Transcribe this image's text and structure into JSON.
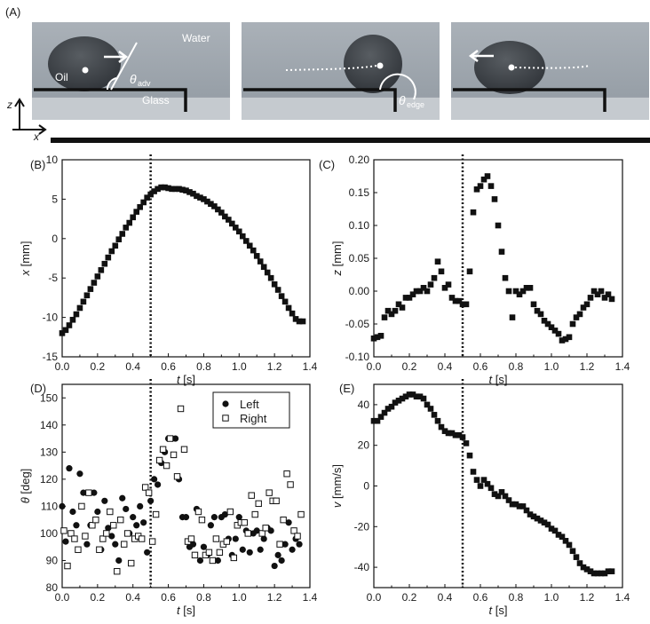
{
  "figure_labels": {
    "a": "(A)",
    "b": "(B)",
    "c": "(C)",
    "d": "(D)",
    "e": "(E)"
  },
  "photos": {
    "water": "Water",
    "oil": "Oil",
    "glass": "Glass",
    "theta": "θ",
    "adv_sub": "adv",
    "edge_sub": "edge",
    "axis_z": "z",
    "axis_x": "x",
    "colors": {
      "background": "#9ea6ae",
      "droplet": "#3b3f44",
      "substrate": "#c4c9cd",
      "edge": "#111111"
    }
  },
  "chart_data": [
    {
      "id": "B",
      "type": "scatter",
      "xlabel": "t [s]",
      "ylabel": "x [mm]",
      "xlim": [
        0.0,
        1.4
      ],
      "ylim": [
        -15,
        10
      ],
      "xticks": [
        "0.0",
        "0.2",
        "0.4",
        "0.6",
        "0.8",
        "1.0",
        "1.2",
        "1.4"
      ],
      "yticks": [
        "-15",
        "-10",
        "-5",
        "0",
        "5",
        "10"
      ],
      "marker": "square",
      "vline": 0.5,
      "series": [
        {
          "x": [
            0.0,
            0.02,
            0.04,
            0.06,
            0.08,
            0.1,
            0.12,
            0.14,
            0.16,
            0.18,
            0.2,
            0.22,
            0.24,
            0.26,
            0.28,
            0.3,
            0.32,
            0.34,
            0.36,
            0.38,
            0.4,
            0.42,
            0.44,
            0.46,
            0.48,
            0.5,
            0.52,
            0.54,
            0.56,
            0.58,
            0.6,
            0.62,
            0.64,
            0.66,
            0.68,
            0.7,
            0.72,
            0.74,
            0.76,
            0.78,
            0.8,
            0.82,
            0.84,
            0.86,
            0.88,
            0.9,
            0.92,
            0.94,
            0.96,
            0.98,
            1.0,
            1.02,
            1.04,
            1.06,
            1.08,
            1.1,
            1.12,
            1.14,
            1.16,
            1.18,
            1.2,
            1.22,
            1.24,
            1.26,
            1.28,
            1.3,
            1.32,
            1.34,
            1.36
          ],
          "y": [
            -12.0,
            -11.6,
            -11.0,
            -10.3,
            -9.6,
            -8.8,
            -8.0,
            -7.2,
            -6.4,
            -5.6,
            -4.8,
            -4.0,
            -3.2,
            -2.4,
            -1.6,
            -0.9,
            -0.1,
            0.6,
            1.4,
            2.0,
            2.7,
            3.4,
            4.0,
            4.6,
            5.2,
            5.6,
            6.0,
            6.3,
            6.5,
            6.5,
            6.4,
            6.3,
            6.3,
            6.3,
            6.2,
            6.1,
            5.9,
            5.7,
            5.4,
            5.2,
            5.0,
            4.7,
            4.4,
            4.1,
            3.7,
            3.3,
            2.8,
            2.4,
            1.9,
            1.4,
            0.9,
            0.3,
            -0.3,
            -0.9,
            -1.5,
            -2.2,
            -2.9,
            -3.6,
            -4.3,
            -5.0,
            -5.8,
            -6.5,
            -7.3,
            -8.0,
            -8.8,
            -9.5,
            -10.2,
            -10.5,
            -10.5
          ]
        }
      ]
    },
    {
      "id": "C",
      "type": "scatter",
      "xlabel": "t [s]",
      "ylabel": "z [mm]",
      "xlim": [
        0.0,
        1.4
      ],
      "ylim": [
        -0.1,
        0.2
      ],
      "xticks": [
        "0.0",
        "0.2",
        "0.4",
        "0.6",
        "0.8",
        "1.0",
        "1.2",
        "1.4"
      ],
      "yticks": [
        "-0.10",
        "-0.05",
        "0.00",
        "0.05",
        "0.10",
        "0.15",
        "0.20"
      ],
      "marker": "square",
      "vline": 0.5,
      "series": [
        {
          "x": [
            0.0,
            0.02,
            0.04,
            0.06,
            0.08,
            0.1,
            0.12,
            0.14,
            0.16,
            0.18,
            0.2,
            0.22,
            0.24,
            0.26,
            0.28,
            0.3,
            0.32,
            0.34,
            0.36,
            0.38,
            0.4,
            0.42,
            0.44,
            0.46,
            0.48,
            0.5,
            0.52,
            0.54,
            0.56,
            0.58,
            0.6,
            0.62,
            0.64,
            0.66,
            0.68,
            0.7,
            0.72,
            0.74,
            0.76,
            0.78,
            0.8,
            0.82,
            0.84,
            0.86,
            0.88,
            0.9,
            0.92,
            0.94,
            0.96,
            0.98,
            1.0,
            1.02,
            1.04,
            1.06,
            1.08,
            1.1,
            1.12,
            1.14,
            1.16,
            1.18,
            1.2,
            1.22,
            1.24,
            1.26,
            1.28,
            1.3,
            1.32,
            1.34
          ],
          "y": [
            -0.072,
            -0.07,
            -0.068,
            -0.04,
            -0.03,
            -0.035,
            -0.03,
            -0.02,
            -0.025,
            -0.01,
            -0.01,
            -0.005,
            0.0,
            0.0,
            0.005,
            0.0,
            0.01,
            0.02,
            0.045,
            0.03,
            0.005,
            0.01,
            -0.01,
            -0.015,
            -0.015,
            -0.02,
            -0.02,
            0.03,
            0.12,
            0.155,
            0.16,
            0.17,
            0.175,
            0.16,
            0.14,
            0.1,
            0.06,
            0.02,
            0.0,
            -0.04,
            0.0,
            -0.005,
            0.0,
            0.005,
            0.005,
            -0.02,
            -0.03,
            -0.035,
            -0.045,
            -0.05,
            -0.055,
            -0.06,
            -0.065,
            -0.075,
            -0.073,
            -0.07,
            -0.05,
            -0.04,
            -0.035,
            -0.025,
            -0.02,
            -0.01,
            0.0,
            -0.005,
            0.0,
            -0.01,
            -0.005,
            -0.012
          ]
        }
      ]
    },
    {
      "id": "D",
      "type": "scatter",
      "xlabel": "t [s]",
      "ylabel": "θ [deg]",
      "xlim": [
        0.0,
        1.4
      ],
      "ylim": [
        80,
        155
      ],
      "xticks": [
        "0.0",
        "0.2",
        "0.4",
        "0.6",
        "0.8",
        "1.0",
        "1.2",
        "1.4"
      ],
      "yticks": [
        "80",
        "90",
        "100",
        "110",
        "120",
        "130",
        "140",
        "150"
      ],
      "vline": 0.5,
      "legend": "top-right",
      "series": [
        {
          "name": "Left",
          "marker": "circle-filled",
          "x": [
            0.0,
            0.02,
            0.04,
            0.06,
            0.08,
            0.1,
            0.12,
            0.14,
            0.16,
            0.18,
            0.2,
            0.22,
            0.24,
            0.26,
            0.28,
            0.3,
            0.32,
            0.34,
            0.36,
            0.38,
            0.4,
            0.42,
            0.44,
            0.46,
            0.48,
            0.5,
            0.52,
            0.54,
            0.56,
            0.58,
            0.6,
            0.62,
            0.64,
            0.66,
            0.68,
            0.7,
            0.72,
            0.74,
            0.76,
            0.78,
            0.8,
            0.82,
            0.84,
            0.86,
            0.88,
            0.9,
            0.92,
            0.94,
            0.96,
            0.98,
            1.0,
            1.02,
            1.04,
            1.06,
            1.08,
            1.1,
            1.12,
            1.14,
            1.16,
            1.18,
            1.2,
            1.22,
            1.24,
            1.26,
            1.28,
            1.3,
            1.32,
            1.34
          ],
          "y": [
            110,
            97,
            124,
            108,
            103,
            122,
            115,
            96,
            103,
            115,
            108,
            94,
            112,
            102,
            99,
            96,
            90,
            113,
            109,
            100,
            106,
            103,
            110,
            104,
            93,
            112,
            120,
            118,
            126,
            130,
            135,
            135,
            135,
            120,
            106,
            106,
            95,
            96,
            109,
            90,
            95,
            92,
            103,
            106,
            90,
            106,
            107,
            98,
            92,
            98,
            106,
            94,
            101,
            93,
            100,
            101,
            94,
            98,
            102,
            101,
            88,
            92,
            90,
            96,
            104,
            94,
            98,
            96
          ]
        },
        {
          "name": "Right",
          "marker": "square-open",
          "x": [
            0.01,
            0.03,
            0.05,
            0.07,
            0.09,
            0.11,
            0.13,
            0.15,
            0.17,
            0.19,
            0.21,
            0.23,
            0.25,
            0.27,
            0.29,
            0.31,
            0.33,
            0.35,
            0.37,
            0.39,
            0.41,
            0.43,
            0.45,
            0.47,
            0.49,
            0.51,
            0.53,
            0.55,
            0.57,
            0.59,
            0.61,
            0.63,
            0.65,
            0.67,
            0.69,
            0.71,
            0.73,
            0.75,
            0.77,
            0.79,
            0.81,
            0.83,
            0.85,
            0.87,
            0.89,
            0.91,
            0.93,
            0.95,
            0.97,
            0.99,
            1.01,
            1.03,
            1.05,
            1.07,
            1.09,
            1.11,
            1.13,
            1.15,
            1.17,
            1.19,
            1.21,
            1.23,
            1.25,
            1.27,
            1.29,
            1.31,
            1.33,
            1.35
          ],
          "y": [
            101,
            88,
            100,
            98,
            94,
            110,
            99,
            115,
            103,
            105,
            94,
            98,
            100,
            108,
            103,
            86,
            105,
            96,
            100,
            89,
            98,
            99,
            98,
            117,
            115,
            97,
            107,
            127,
            131,
            125,
            135,
            129,
            121,
            146,
            131,
            97,
            98,
            92,
            108,
            105,
            92,
            93,
            90,
            98,
            93,
            96,
            97,
            108,
            91,
            103,
            104,
            104,
            100,
            114,
            107,
            111,
            100,
            102,
            115,
            112,
            112,
            96,
            105,
            122,
            118,
            101,
            99,
            107
          ]
        }
      ]
    },
    {
      "id": "E",
      "type": "scatter",
      "xlabel": "t [s]",
      "ylabel": "v [mm/s]",
      "xlim": [
        0.0,
        1.4
      ],
      "ylim": [
        -50,
        50
      ],
      "xticks": [
        "0.0",
        "0.2",
        "0.4",
        "0.6",
        "0.8",
        "1.0",
        "1.2",
        "1.4"
      ],
      "yticks": [
        "-40",
        "-20",
        "0",
        "20",
        "40"
      ],
      "marker": "square",
      "vline": 0.5,
      "series": [
        {
          "x": [
            0.0,
            0.02,
            0.04,
            0.06,
            0.08,
            0.1,
            0.12,
            0.14,
            0.16,
            0.18,
            0.2,
            0.22,
            0.24,
            0.26,
            0.28,
            0.3,
            0.32,
            0.34,
            0.36,
            0.38,
            0.4,
            0.42,
            0.44,
            0.46,
            0.48,
            0.5,
            0.52,
            0.54,
            0.56,
            0.58,
            0.6,
            0.62,
            0.64,
            0.66,
            0.68,
            0.7,
            0.72,
            0.74,
            0.76,
            0.78,
            0.8,
            0.82,
            0.84,
            0.86,
            0.88,
            0.9,
            0.92,
            0.94,
            0.96,
            0.98,
            1.0,
            1.02,
            1.04,
            1.06,
            1.08,
            1.1,
            1.12,
            1.14,
            1.16,
            1.18,
            1.2,
            1.22,
            1.24,
            1.26,
            1.28,
            1.3,
            1.32,
            1.34
          ],
          "y": [
            32,
            32,
            34,
            36,
            38,
            39,
            41,
            42,
            43,
            44,
            45,
            45,
            44,
            44,
            43,
            40,
            38,
            35,
            32,
            29,
            27,
            26,
            26,
            25,
            25,
            24,
            21,
            15,
            7,
            3,
            0,
            3,
            1,
            -1,
            -4,
            -5,
            -3,
            -5,
            -7,
            -9,
            -9,
            -10,
            -10,
            -12,
            -14,
            -15,
            -16,
            -17,
            -18,
            -19,
            -21,
            -22,
            -24,
            -25,
            -27,
            -29,
            -32,
            -35,
            -38,
            -40,
            -41,
            -42,
            -43,
            -43,
            -43,
            -43,
            -42,
            -42
          ]
        }
      ]
    }
  ]
}
